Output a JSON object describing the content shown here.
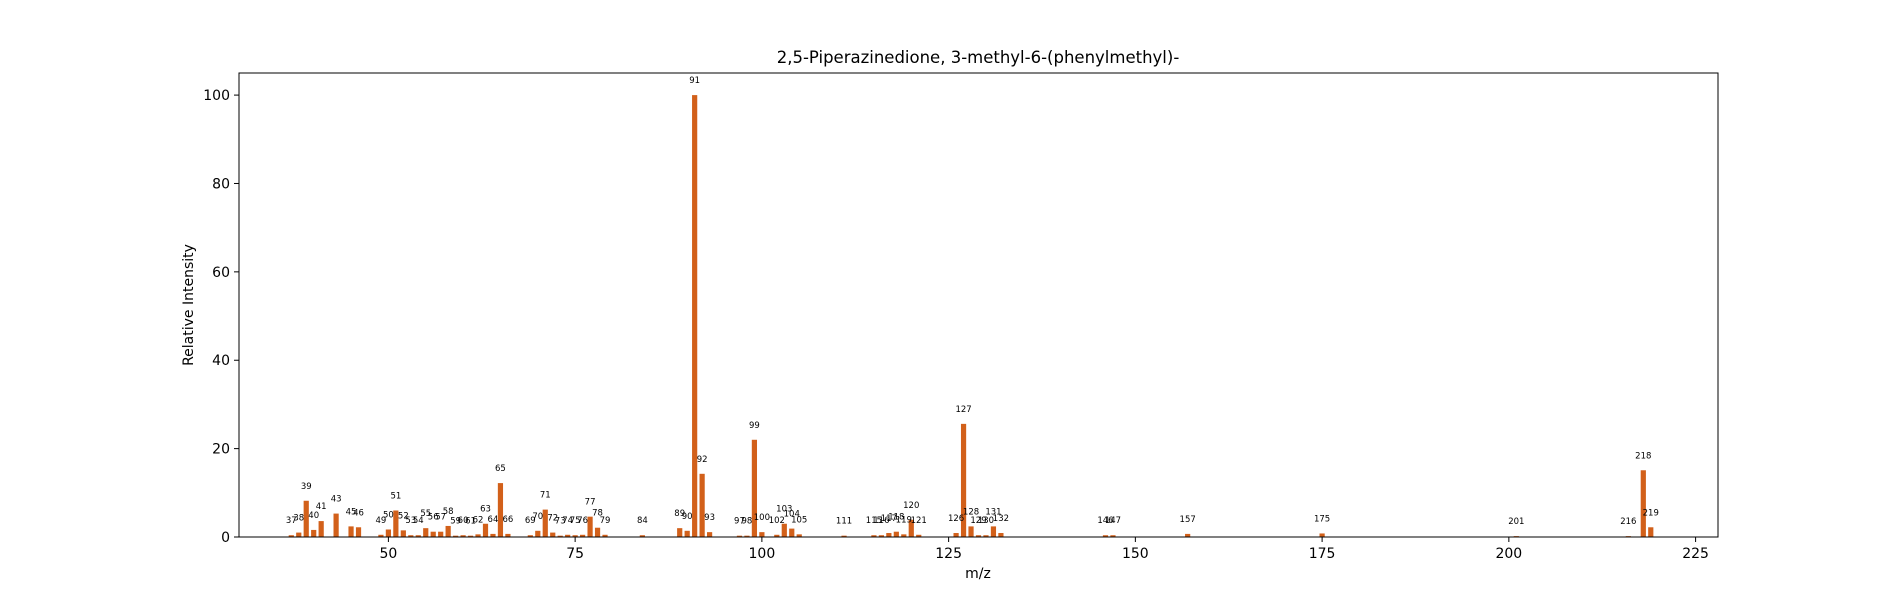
{
  "chart_data": {
    "type": "bar",
    "title": "2,5-Piperazinedione, 3-methyl-6-(phenylmethyl)-",
    "xlabel": "m/z",
    "ylabel": "Relative Intensity",
    "xlim": [
      30,
      228
    ],
    "ylim": [
      0,
      105
    ],
    "xticks": [
      50,
      75,
      100,
      125,
      150,
      175,
      200,
      225
    ],
    "yticks": [
      0,
      20,
      40,
      60,
      80,
      100
    ],
    "grid": false,
    "bar_color": "#d2601a",
    "peaks": [
      {
        "mz": 37,
        "intensity": 0.4
      },
      {
        "mz": 38,
        "intensity": 1.0
      },
      {
        "mz": 39,
        "intensity": 8.2
      },
      {
        "mz": 40,
        "intensity": 1.6
      },
      {
        "mz": 41,
        "intensity": 3.6
      },
      {
        "mz": 43,
        "intensity": 5.3
      },
      {
        "mz": 45,
        "intensity": 2.4
      },
      {
        "mz": 46,
        "intensity": 2.2
      },
      {
        "mz": 49,
        "intensity": 0.5
      },
      {
        "mz": 50,
        "intensity": 1.7
      },
      {
        "mz": 51,
        "intensity": 6.0
      },
      {
        "mz": 52,
        "intensity": 1.5
      },
      {
        "mz": 53,
        "intensity": 0.4
      },
      {
        "mz": 54,
        "intensity": 0.4
      },
      {
        "mz": 55,
        "intensity": 2.0
      },
      {
        "mz": 56,
        "intensity": 1.2
      },
      {
        "mz": 57,
        "intensity": 1.2
      },
      {
        "mz": 58,
        "intensity": 2.5
      },
      {
        "mz": 59,
        "intensity": 0.3
      },
      {
        "mz": 60,
        "intensity": 0.4
      },
      {
        "mz": 61,
        "intensity": 0.3
      },
      {
        "mz": 62,
        "intensity": 0.6
      },
      {
        "mz": 63,
        "intensity": 3.0
      },
      {
        "mz": 64,
        "intensity": 0.7
      },
      {
        "mz": 65,
        "intensity": 12.2
      },
      {
        "mz": 66,
        "intensity": 0.7
      },
      {
        "mz": 69,
        "intensity": 0.4
      },
      {
        "mz": 70,
        "intensity": 1.4
      },
      {
        "mz": 71,
        "intensity": 6.2
      },
      {
        "mz": 72,
        "intensity": 1.0
      },
      {
        "mz": 73,
        "intensity": 0.3
      },
      {
        "mz": 74,
        "intensity": 0.5
      },
      {
        "mz": 75,
        "intensity": 0.4
      },
      {
        "mz": 76,
        "intensity": 0.5
      },
      {
        "mz": 77,
        "intensity": 4.6
      },
      {
        "mz": 78,
        "intensity": 2.1
      },
      {
        "mz": 79,
        "intensity": 0.5
      },
      {
        "mz": 84,
        "intensity": 0.4
      },
      {
        "mz": 89,
        "intensity": 2.0
      },
      {
        "mz": 90,
        "intensity": 1.4
      },
      {
        "mz": 91,
        "intensity": 100.0
      },
      {
        "mz": 92,
        "intensity": 14.3
      },
      {
        "mz": 93,
        "intensity": 1.1
      },
      {
        "mz": 97,
        "intensity": 0.3
      },
      {
        "mz": 98,
        "intensity": 0.3
      },
      {
        "mz": 99,
        "intensity": 22.0
      },
      {
        "mz": 100,
        "intensity": 1.1
      },
      {
        "mz": 102,
        "intensity": 0.5
      },
      {
        "mz": 103,
        "intensity": 3.0
      },
      {
        "mz": 104,
        "intensity": 1.9
      },
      {
        "mz": 105,
        "intensity": 0.6
      },
      {
        "mz": 111,
        "intensity": 0.3
      },
      {
        "mz": 115,
        "intensity": 0.4
      },
      {
        "mz": 116,
        "intensity": 0.4
      },
      {
        "mz": 117,
        "intensity": 0.9
      },
      {
        "mz": 118,
        "intensity": 1.2
      },
      {
        "mz": 119,
        "intensity": 0.6
      },
      {
        "mz": 120,
        "intensity": 3.9
      },
      {
        "mz": 121,
        "intensity": 0.5
      },
      {
        "mz": 126,
        "intensity": 0.9
      },
      {
        "mz": 127,
        "intensity": 25.6
      },
      {
        "mz": 128,
        "intensity": 2.4
      },
      {
        "mz": 129,
        "intensity": 0.4
      },
      {
        "mz": 130,
        "intensity": 0.4
      },
      {
        "mz": 131,
        "intensity": 2.4
      },
      {
        "mz": 132,
        "intensity": 0.9
      },
      {
        "mz": 146,
        "intensity": 0.4
      },
      {
        "mz": 147,
        "intensity": 0.4
      },
      {
        "mz": 157,
        "intensity": 0.7
      },
      {
        "mz": 175,
        "intensity": 0.8
      },
      {
        "mz": 201,
        "intensity": 0.2
      },
      {
        "mz": 216,
        "intensity": 0.2
      },
      {
        "mz": 218,
        "intensity": 15.1
      },
      {
        "mz": 219,
        "intensity": 2.2
      }
    ]
  }
}
